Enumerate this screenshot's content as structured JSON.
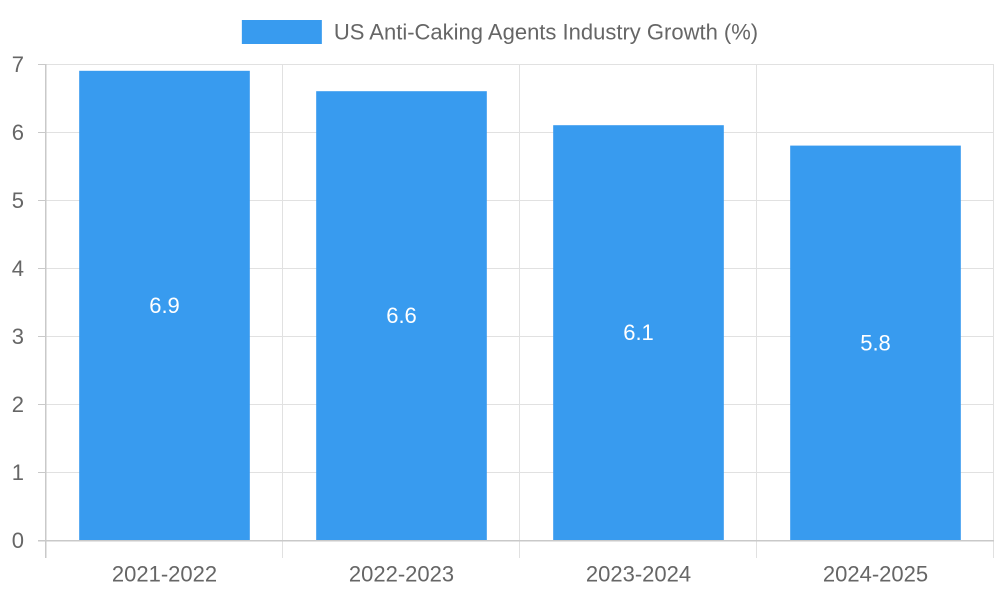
{
  "chart_data": {
    "type": "bar",
    "categories": [
      "2021-2022",
      "2022-2023",
      "2023-2024",
      "2024-2025"
    ],
    "series": [
      {
        "name": "US Anti-Caking Agents Industry Growth (%)",
        "values": [
          6.9,
          6.6,
          6.1,
          5.8
        ],
        "color": "#389bef"
      }
    ],
    "data_labels": [
      "6.9",
      "6.6",
      "6.1",
      "5.8"
    ],
    "ylim": [
      0,
      7
    ],
    "yticks": [
      0,
      1,
      2,
      3,
      4,
      5,
      6,
      7
    ],
    "ytick_labels": [
      "0",
      "1",
      "2",
      "3",
      "4",
      "5",
      "6",
      "7"
    ],
    "grid": true,
    "legend_position": "top-center",
    "title": "",
    "xlabel": "",
    "ylabel": ""
  }
}
